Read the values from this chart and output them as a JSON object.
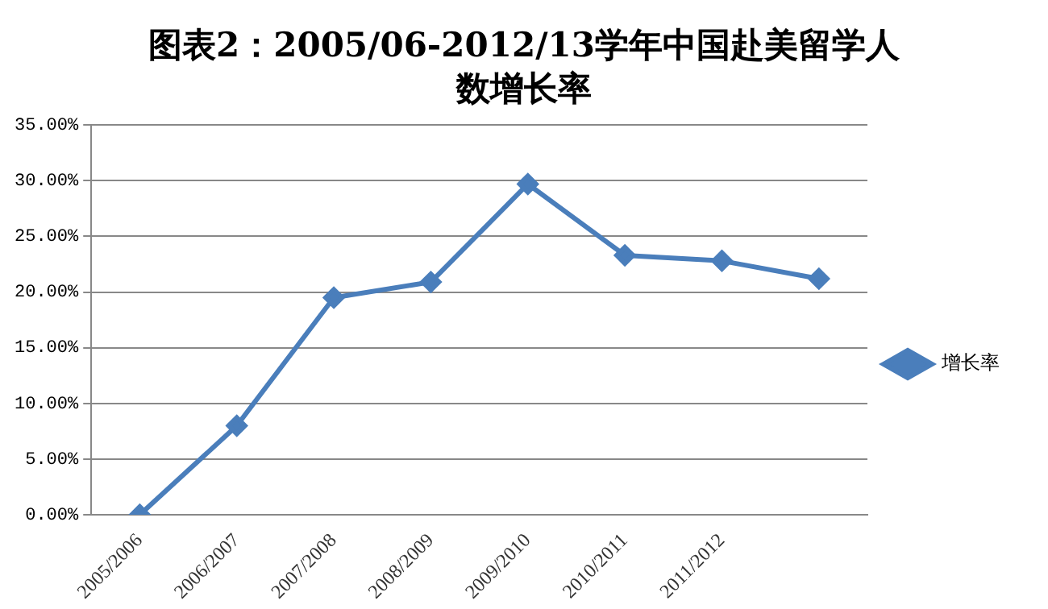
{
  "chart_data": {
    "type": "line",
    "title": "图表2：2005/06-2012/13学年中国赴美留学人数增长率",
    "categories": [
      "2005/2006",
      "2006/2007",
      "2007/2008",
      "2008/2009",
      "2009/2010",
      "2010/2011",
      "2011/2012",
      null
    ],
    "series": [
      {
        "name": "增长率",
        "color": "#4a7ebb",
        "values": [
          0,
          8.0,
          19.5,
          20.9,
          29.7,
          23.3,
          22.8,
          21.2
        ]
      }
    ],
    "ylim": [
      0,
      35
    ],
    "yticks": [
      {
        "value": 0,
        "label": "0.00%"
      },
      {
        "value": 5,
        "label": "5.00%"
      },
      {
        "value": 10,
        "label": "10.00%"
      },
      {
        "value": 15,
        "label": "15.00%"
      },
      {
        "value": 20,
        "label": "20.00%"
      },
      {
        "value": 25,
        "label": "25.00%"
      },
      {
        "value": 30,
        "label": "30.00%"
      },
      {
        "value": 35,
        "label": "35.00%"
      }
    ],
    "grid": "y",
    "legend": "right",
    "marker": "diamond",
    "line_style": "solid"
  }
}
